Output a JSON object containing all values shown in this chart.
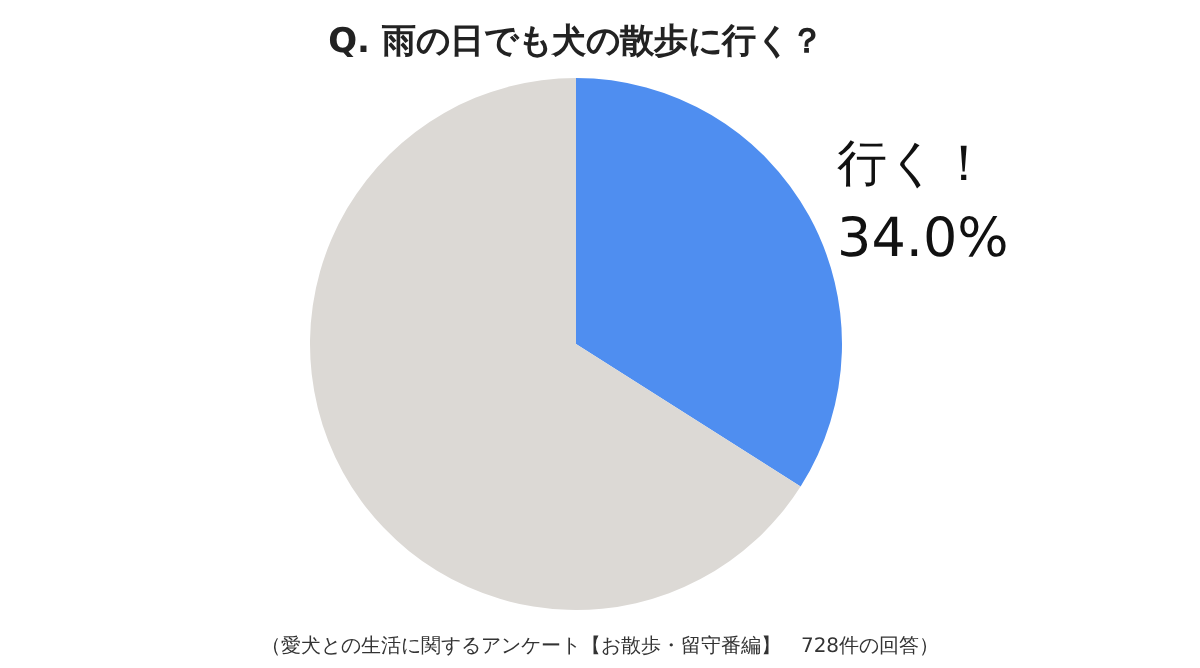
{
  "chart_data": {
    "type": "pie",
    "title": "Q.  雨の日でも犬の散歩に行く？",
    "categories": [
      "行く！",
      null
    ],
    "values": [
      34.0,
      66.0
    ],
    "value_labels": [
      "34.0%",
      null
    ],
    "colors": [
      "#4f8ef0",
      "#dcd9d5"
    ],
    "annotations": [
      "（愛犬との生活に関するアンケート【お散歩・留守番編】　728件の回答）"
    ]
  }
}
